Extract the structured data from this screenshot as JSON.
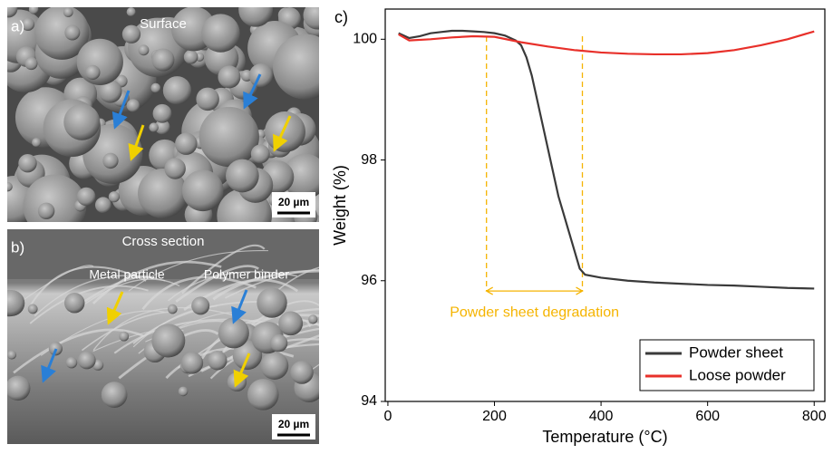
{
  "panels": [
    {
      "label": "a)",
      "title": "Surface",
      "scale_bar": "20 µm"
    },
    {
      "label": "b)",
      "title": "Cross section",
      "annotations": [
        "Metal particle",
        "Polymer binder"
      ],
      "scale_bar": "20 µm"
    }
  ],
  "chart_data": {
    "type": "line",
    "panel_label": "c)",
    "xlabel": "Temperature (°C)",
    "ylabel": "Weight (%)",
    "xlim": [
      -5,
      820
    ],
    "ylim": [
      94,
      100.5
    ],
    "xticks": [
      0,
      200,
      400,
      600,
      800
    ],
    "yticks": [
      94,
      96,
      98,
      100
    ],
    "legend": "lower right",
    "series": [
      {
        "name": "Powder sheet",
        "color": "#3a3a3a",
        "x": [
          20,
          40,
          60,
          80,
          100,
          120,
          140,
          160,
          180,
          200,
          220,
          240,
          250,
          260,
          270,
          280,
          290,
          300,
          310,
          320,
          330,
          340,
          350,
          360,
          370,
          400,
          450,
          500,
          550,
          600,
          650,
          700,
          750,
          800
        ],
        "values": [
          100.1,
          100.02,
          100.05,
          100.1,
          100.12,
          100.14,
          100.14,
          100.13,
          100.12,
          100.1,
          100.06,
          99.98,
          99.9,
          99.7,
          99.4,
          99.0,
          98.6,
          98.2,
          97.8,
          97.4,
          97.1,
          96.8,
          96.5,
          96.2,
          96.1,
          96.05,
          96.0,
          95.97,
          95.95,
          95.93,
          95.92,
          95.9,
          95.88,
          95.87
        ]
      },
      {
        "name": "Loose powder",
        "color": "#e8302a",
        "x": [
          20,
          40,
          80,
          120,
          160,
          200,
          250,
          300,
          350,
          400,
          450,
          500,
          550,
          600,
          650,
          700,
          750,
          800
        ],
        "values": [
          100.08,
          99.98,
          100.0,
          100.03,
          100.05,
          100.04,
          99.95,
          99.88,
          99.82,
          99.78,
          99.76,
          99.75,
          99.75,
          99.77,
          99.82,
          99.9,
          100.0,
          100.13
        ]
      }
    ],
    "annotation": {
      "text": "Powder sheet degradation",
      "color": "#f5b400",
      "x": [
        185,
        365
      ],
      "y": 95.83
    }
  }
}
